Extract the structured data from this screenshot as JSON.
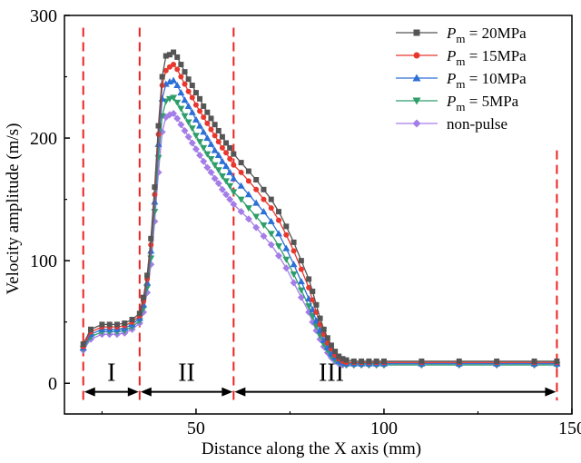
{
  "chart_data": {
    "type": "line",
    "xlabel": "Distance along the X axis (mm)",
    "ylabel": "Velocity amplitude (m/s)",
    "xlim": [
      15,
      150
    ],
    "ylim": [
      -25,
      300
    ],
    "xticks": [
      50,
      100,
      150
    ],
    "yticks": [
      0,
      100,
      200,
      300
    ],
    "legend_position": "top-right",
    "region_boundaries": [
      20,
      35,
      60,
      146
    ],
    "regions": [
      {
        "label": "I",
        "from": 20,
        "to": 35
      },
      {
        "label": "II",
        "from": 35,
        "to": 60
      },
      {
        "label": "III",
        "from": 60,
        "to": 146
      }
    ],
    "series": [
      {
        "legend_sub": "m",
        "legend_value": " = 20MPa",
        "marker": "square",
        "color": "#555555",
        "x": [
          20,
          22,
          25,
          27,
          29,
          31,
          33,
          35,
          36,
          37,
          38,
          39,
          40,
          41,
          42,
          43,
          44,
          45,
          46,
          47,
          48,
          49,
          50,
          51,
          52,
          53,
          54,
          55,
          56,
          57,
          58,
          59,
          60,
          62,
          64,
          66,
          68,
          70,
          72,
          74,
          76,
          78,
          80,
          81,
          82,
          83,
          84,
          85,
          86,
          87,
          88,
          89,
          90,
          92,
          94,
          96,
          98,
          100,
          110,
          120,
          130,
          140,
          146
        ],
        "y": [
          32,
          44,
          48,
          48,
          48,
          49,
          52,
          57,
          70,
          88,
          118,
          160,
          210,
          250,
          267,
          268,
          270,
          266,
          260,
          254,
          248,
          243,
          237,
          232,
          226,
          221,
          216,
          211,
          206,
          201,
          196,
          192,
          187,
          180,
          173,
          166,
          158,
          150,
          140,
          128,
          115,
          100,
          85,
          75,
          64,
          53,
          44,
          37,
          31,
          26,
          22,
          20,
          19,
          18,
          18,
          18,
          18,
          18,
          18,
          18,
          18,
          18,
          18
        ]
      },
      {
        "legend_sub": "m",
        "legend_value": " = 15MPa",
        "marker": "circle",
        "color": "#e8382e",
        "x": [
          20,
          22,
          25,
          27,
          29,
          31,
          33,
          35,
          36,
          37,
          38,
          39,
          40,
          41,
          42,
          43,
          44,
          45,
          46,
          47,
          48,
          49,
          50,
          51,
          52,
          53,
          54,
          55,
          56,
          57,
          58,
          59,
          60,
          62,
          64,
          66,
          68,
          70,
          72,
          74,
          76,
          78,
          80,
          81,
          82,
          83,
          84,
          85,
          86,
          87,
          88,
          89,
          90,
          92,
          94,
          96,
          98,
          100,
          110,
          120,
          130,
          140,
          146
        ],
        "y": [
          30,
          42,
          46,
          46,
          46,
          47,
          50,
          55,
          67,
          85,
          113,
          154,
          203,
          243,
          255,
          258,
          260,
          256,
          250,
          244,
          238,
          233,
          227,
          222,
          217,
          212,
          207,
          202,
          197,
          192,
          188,
          183,
          178,
          172,
          165,
          158,
          150,
          143,
          133,
          121,
          108,
          93,
          78,
          68,
          58,
          48,
          40,
          33,
          28,
          23,
          20,
          18,
          17,
          17,
          17,
          17,
          17,
          17,
          17,
          17,
          17,
          17,
          17
        ]
      },
      {
        "legend_sub": "m",
        "legend_value": " = 10MPa",
        "marker": "triangle-up",
        "color": "#2c6fd6",
        "x": [
          20,
          22,
          25,
          27,
          29,
          31,
          33,
          35,
          36,
          37,
          38,
          39,
          40,
          41,
          42,
          43,
          44,
          45,
          46,
          47,
          48,
          49,
          50,
          51,
          52,
          53,
          54,
          55,
          56,
          57,
          58,
          59,
          60,
          62,
          64,
          66,
          68,
          70,
          72,
          74,
          76,
          78,
          80,
          81,
          82,
          83,
          84,
          85,
          86,
          87,
          88,
          89,
          90,
          92,
          94,
          96,
          98,
          100,
          110,
          120,
          130,
          140,
          146
        ],
        "y": [
          29,
          40,
          44,
          44,
          44,
          45,
          48,
          53,
          64,
          82,
          108,
          148,
          195,
          232,
          244,
          246,
          247,
          243,
          237,
          231,
          226,
          221,
          215,
          210,
          205,
          200,
          195,
          190,
          186,
          181,
          177,
          172,
          167,
          161,
          154,
          147,
          140,
          132,
          122,
          110,
          97,
          83,
          69,
          60,
          51,
          43,
          35,
          29,
          24,
          21,
          18,
          17,
          16,
          16,
          16,
          16,
          16,
          16,
          16,
          16,
          16,
          16,
          16
        ]
      },
      {
        "legend_sub": "m",
        "legend_value": " = 5MPa",
        "marker": "triangle-down",
        "color": "#2e9e6a",
        "x": [
          20,
          22,
          25,
          27,
          29,
          31,
          33,
          35,
          36,
          37,
          38,
          39,
          40,
          41,
          42,
          43,
          44,
          45,
          46,
          47,
          48,
          49,
          50,
          51,
          52,
          53,
          54,
          55,
          56,
          57,
          58,
          59,
          60,
          62,
          64,
          66,
          68,
          70,
          72,
          74,
          76,
          78,
          80,
          81,
          82,
          83,
          84,
          85,
          86,
          87,
          88,
          89,
          90,
          92,
          94,
          96,
          98,
          100,
          110,
          120,
          130,
          140,
          146
        ],
        "y": [
          28,
          38,
          42,
          42,
          42,
          43,
          46,
          51,
          61,
          78,
          102,
          140,
          184,
          218,
          230,
          232,
          233,
          229,
          224,
          218,
          213,
          208,
          202,
          197,
          192,
          187,
          183,
          178,
          174,
          169,
          165,
          161,
          156,
          150,
          143,
          136,
          129,
          122,
          112,
          101,
          89,
          76,
          63,
          55,
          47,
          39,
          32,
          27,
          22,
          19,
          17,
          16,
          15,
          15,
          15,
          15,
          15,
          15,
          15,
          15,
          15,
          15,
          15
        ]
      },
      {
        "legend_value": "non-pulse",
        "marker": "diamond",
        "color": "#a47de8",
        "x": [
          20,
          22,
          25,
          27,
          29,
          31,
          33,
          35,
          36,
          37,
          38,
          39,
          40,
          41,
          42,
          43,
          44,
          45,
          46,
          47,
          48,
          49,
          50,
          51,
          52,
          53,
          54,
          55,
          56,
          57,
          58,
          59,
          60,
          62,
          64,
          66,
          68,
          70,
          72,
          74,
          76,
          78,
          80,
          81,
          82,
          83,
          84,
          85,
          86,
          87,
          88,
          89,
          90,
          92,
          94,
          96,
          98,
          100,
          110,
          120,
          130,
          140,
          146
        ],
        "y": [
          27,
          36,
          40,
          40,
          40,
          41,
          44,
          49,
          58,
          74,
          97,
          132,
          172,
          205,
          217,
          219,
          220,
          216,
          211,
          206,
          201,
          196,
          191,
          186,
          181,
          176,
          172,
          167,
          163,
          158,
          154,
          150,
          146,
          140,
          134,
          127,
          120,
          113,
          104,
          94,
          82,
          70,
          58,
          50,
          43,
          36,
          30,
          25,
          21,
          18,
          16,
          15,
          15,
          15,
          15,
          15,
          15,
          15,
          15,
          15,
          15,
          15,
          15
        ]
      }
    ]
  }
}
